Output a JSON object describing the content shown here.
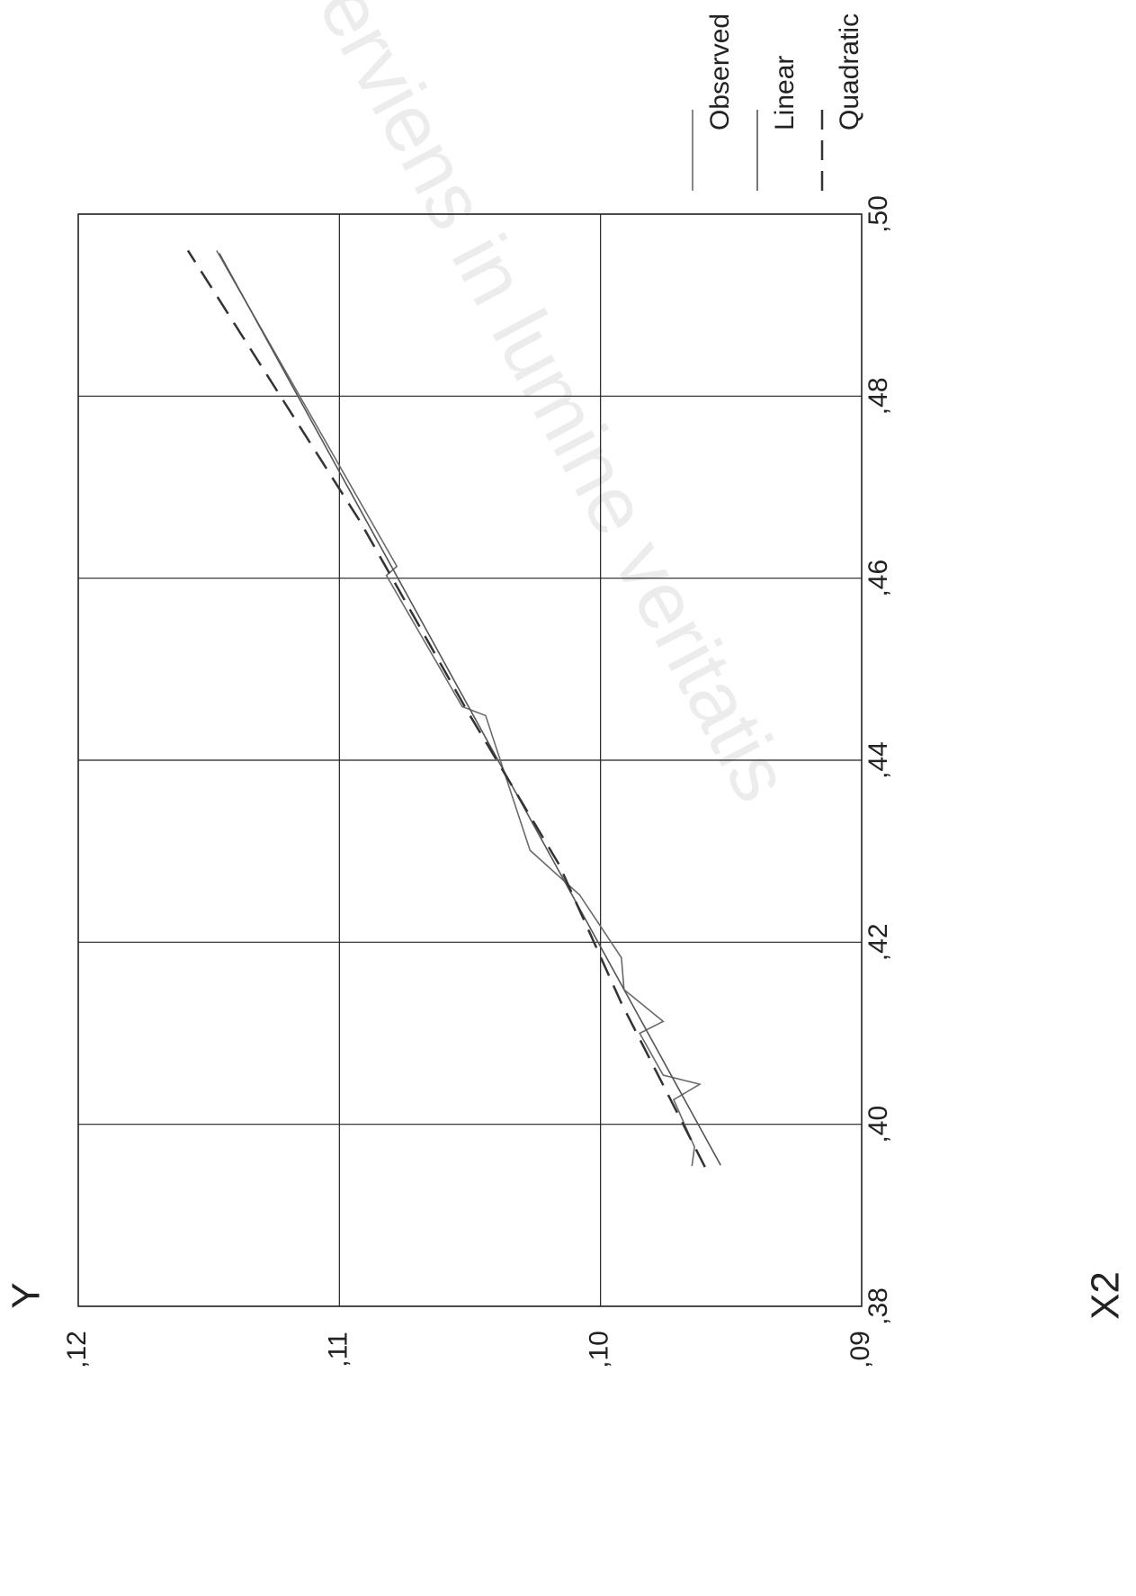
{
  "chart_data": {
    "type": "line",
    "y_label": "Y",
    "x_label": "X2",
    "x_rotated": true,
    "xlim": [
      0.38,
      0.5
    ],
    "xticks": [
      {
        "value": 0.38,
        "label": ",38"
      },
      {
        "value": 0.4,
        "label": ",40"
      },
      {
        "value": 0.42,
        "label": ",42"
      },
      {
        "value": 0.44,
        "label": ",44"
      },
      {
        "value": 0.46,
        "label": ",46"
      },
      {
        "value": 0.48,
        "label": ",48"
      },
      {
        "value": 0.5,
        "label": ",50"
      }
    ],
    "ylim": [
      0.09,
      0.12
    ],
    "yticks": [
      {
        "value": 0.09,
        "label": ",09"
      },
      {
        "value": 0.1,
        "label": ",10"
      },
      {
        "value": 0.11,
        "label": ",11"
      },
      {
        "value": 0.12,
        "label": ",12"
      }
    ],
    "grid": true,
    "series": [
      {
        "name": "Observed",
        "color": "#6a6a6a",
        "style": "solid",
        "x": [
          0.3954,
          0.3975,
          0.4027,
          0.4044,
          0.4054,
          0.41,
          0.4113,
          0.4148,
          0.4183,
          0.4252,
          0.4301,
          0.4449,
          0.4459,
          0.4603,
          0.4613,
          0.496
        ],
        "values": [
          0.0965,
          0.0964,
          0.0972,
          0.0962,
          0.0976,
          0.0985,
          0.0976,
          0.0991,
          0.0992,
          0.1008,
          0.1027,
          0.1044,
          0.1053,
          0.1082,
          0.1078,
          0.1147
        ]
      },
      {
        "name": "Linear",
        "color": "#555555",
        "style": "solid",
        "x": [
          0.3955,
          0.4957
        ],
        "values": [
          0.0954,
          0.1146
        ]
      },
      {
        "name": "Quadratic",
        "color": "#333333",
        "style": "dashed",
        "x": [
          0.3953,
          0.4133,
          0.4286,
          0.4454,
          0.4662,
          0.496
        ],
        "values": [
          0.096,
          0.0992,
          0.1016,
          0.1051,
          0.1092,
          0.1158
        ]
      }
    ]
  },
  "watermark": "serviens in lumine veritatis"
}
